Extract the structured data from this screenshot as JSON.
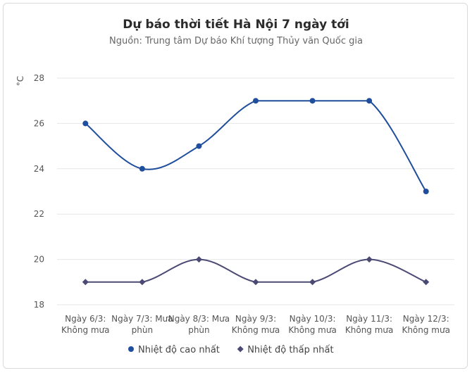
{
  "chart_data": {
    "type": "line",
    "title": "Dự báo thời tiết Hà Nội 7 ngày tới",
    "subtitle": "Nguồn: Trung tâm Dự báo Khí tượng Thủy văn Quốc gia",
    "ylabel": "°C",
    "xlabel": "",
    "ylim": [
      18,
      28
    ],
    "yticks": [
      18,
      20,
      22,
      24,
      26,
      28
    ],
    "grid": true,
    "legend_position": "bottom",
    "categories": [
      [
        "Ngày 6/3:",
        "Không mưa"
      ],
      [
        "Ngày 7/3: Mưa",
        "phùn"
      ],
      [
        "Ngày 8/3: Mưa",
        "phùn"
      ],
      [
        "Ngày 9/3:",
        "Không mưa"
      ],
      [
        "Ngày 10/3:",
        "Không mưa"
      ],
      [
        "Ngày 11/3:",
        "Không mưa"
      ],
      [
        "Ngày 12/3:",
        "Không mưa"
      ]
    ],
    "series": [
      {
        "name": "Nhiệt độ cao nhất",
        "values": [
          26,
          24,
          25,
          27,
          27,
          27,
          23
        ],
        "color": "#1f4e9c",
        "marker": "circle"
      },
      {
        "name": "Nhiệt độ thấp nhất",
        "values": [
          19,
          19,
          20,
          19,
          19,
          20,
          19
        ],
        "color": "#4b4a74",
        "marker": "diamond"
      }
    ]
  }
}
